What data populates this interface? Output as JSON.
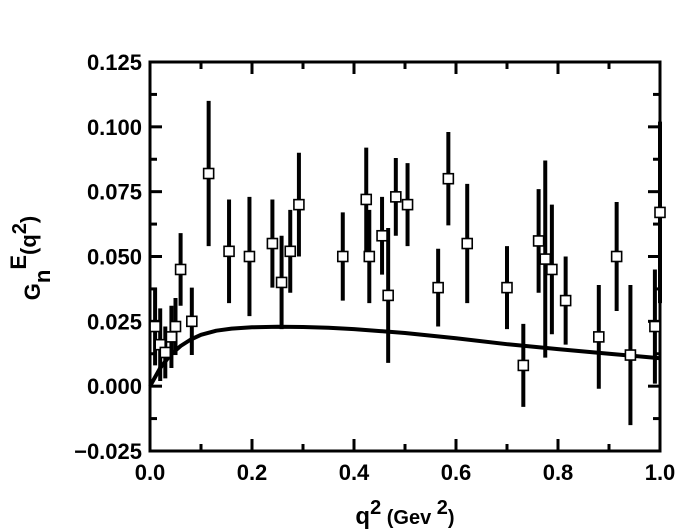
{
  "chart_data": {
    "type": "scatter",
    "title": "",
    "xlabel": {
      "base": "q",
      "sup1": "2",
      "mid": " (Gev ",
      "sup2": "2",
      "end": ")"
    },
    "ylabel": {
      "base": "G",
      "sub": "n",
      "sup": "E",
      "paren_open": "(q",
      "sup2": "2",
      "paren_close": ")"
    },
    "xlim": [
      0.0,
      1.0
    ],
    "ylim": [
      -0.025,
      0.125
    ],
    "x_ticks": [
      "0.0",
      "0.2",
      "0.4",
      "0.6",
      "0.8",
      "1.0"
    ],
    "y_ticks": [
      "−0.025",
      "0.000",
      "0.025",
      "0.050",
      "0.075",
      "0.100",
      "0.125"
    ],
    "grid": false,
    "series": [
      {
        "points": [
          {
            "x": 0.01,
            "y": 0.023,
            "err": 0.015
          },
          {
            "x": 0.02,
            "y": 0.016,
            "err": 0.014
          },
          {
            "x": 0.03,
            "y": 0.013,
            "err": 0.01
          },
          {
            "x": 0.042,
            "y": 0.019,
            "err": 0.012
          },
          {
            "x": 0.05,
            "y": 0.023,
            "err": 0.011
          },
          {
            "x": 0.06,
            "y": 0.045,
            "err": 0.014
          },
          {
            "x": 0.082,
            "y": 0.025,
            "err": 0.013
          },
          {
            "x": 0.115,
            "y": 0.082,
            "err": 0.028
          },
          {
            "x": 0.155,
            "y": 0.052,
            "err": 0.02
          },
          {
            "x": 0.195,
            "y": 0.05,
            "err": 0.023
          },
          {
            "x": 0.24,
            "y": 0.055,
            "err": 0.017
          },
          {
            "x": 0.258,
            "y": 0.04,
            "err": 0.018
          },
          {
            "x": 0.275,
            "y": 0.052,
            "err": 0.016
          },
          {
            "x": 0.292,
            "y": 0.07,
            "err": 0.02
          },
          {
            "x": 0.378,
            "y": 0.05,
            "err": 0.017
          },
          {
            "x": 0.424,
            "y": 0.072,
            "err": 0.02
          },
          {
            "x": 0.43,
            "y": 0.05,
            "err": 0.018
          },
          {
            "x": 0.455,
            "y": 0.058,
            "err": 0.015
          },
          {
            "x": 0.467,
            "y": 0.035,
            "err": 0.026
          },
          {
            "x": 0.482,
            "y": 0.073,
            "err": 0.015
          },
          {
            "x": 0.505,
            "y": 0.07,
            "err": 0.016
          },
          {
            "x": 0.565,
            "y": 0.038,
            "err": 0.015
          },
          {
            "x": 0.585,
            "y": 0.08,
            "err": 0.018
          },
          {
            "x": 0.622,
            "y": 0.055,
            "err": 0.023
          },
          {
            "x": 0.7,
            "y": 0.038,
            "err": 0.016
          },
          {
            "x": 0.732,
            "y": 0.008,
            "err": 0.016
          },
          {
            "x": 0.762,
            "y": 0.056,
            "err": 0.02
          },
          {
            "x": 0.775,
            "y": 0.049,
            "err": 0.038
          },
          {
            "x": 0.788,
            "y": 0.045,
            "err": 0.025
          },
          {
            "x": 0.815,
            "y": 0.033,
            "err": 0.017
          },
          {
            "x": 0.88,
            "y": 0.019,
            "err": 0.02
          },
          {
            "x": 0.915,
            "y": 0.05,
            "err": 0.021
          },
          {
            "x": 0.942,
            "y": 0.012,
            "err": 0.027
          },
          {
            "x": 0.99,
            "y": 0.023,
            "err": 0.022
          },
          {
            "x": 1.0,
            "y": 0.067,
            "err": 0.035
          }
        ]
      },
      {
        "type": "line",
        "x": [
          0.0,
          0.02,
          0.04,
          0.06,
          0.08,
          0.1,
          0.13,
          0.16,
          0.2,
          0.25,
          0.3,
          0.35,
          0.4,
          0.5,
          0.6,
          0.7,
          0.8,
          0.9,
          1.0
        ],
        "y": [
          0.0,
          0.007,
          0.012,
          0.0155,
          0.018,
          0.0198,
          0.0214,
          0.0222,
          0.0227,
          0.0229,
          0.0228,
          0.0225,
          0.022,
          0.0205,
          0.0185,
          0.0162,
          0.0143,
          0.0125,
          0.0108
        ]
      }
    ]
  }
}
